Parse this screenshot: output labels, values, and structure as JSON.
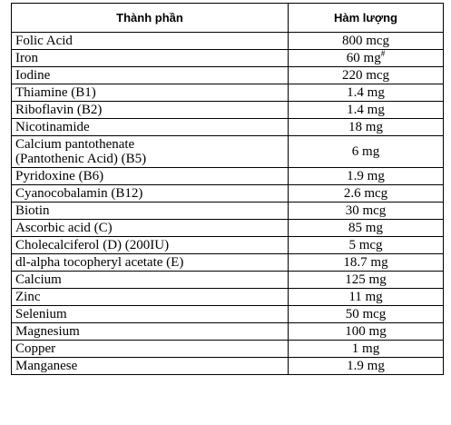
{
  "header": {
    "col_component": "Thành phần",
    "col_amount": "Hàm lượng"
  },
  "rows": [
    {
      "name": "Folic Acid",
      "amount": "800 mcg"
    },
    {
      "name": "Iron",
      "amount": "60 mg",
      "amount_sup": "#"
    },
    {
      "name": "Iodine",
      "amount": "220 mcg"
    },
    {
      "name": "Thiamine (B1)",
      "amount": "1.4 mg"
    },
    {
      "name": "Riboflavin (B2)",
      "amount": "1.4 mg"
    },
    {
      "name": "Nicotinamide",
      "amount": "18 mg"
    },
    {
      "name_line1": "Calcium pantothenate",
      "name_line2": "(Pantothenic Acid) (B5)",
      "amount": "6 mg"
    },
    {
      "name": "Pyridoxine (B6)",
      "amount": "1.9 mg"
    },
    {
      "name": "Cyanocobalamin (B12)",
      "amount": "2.6 mcg"
    },
    {
      "name": "Biotin",
      "amount": "30 mcg"
    },
    {
      "name": "Ascorbic acid (C)",
      "amount": "85 mg"
    },
    {
      "name": "Cholecalciferol (D) (200IU)",
      "amount": "5 mcg"
    },
    {
      "name": "dl-alpha tocopheryl acetate (E)",
      "amount": "18.7 mg"
    },
    {
      "name": "Calcium",
      "amount": "125 mg"
    },
    {
      "name": "Zinc",
      "amount": "11 mg"
    },
    {
      "name": "Selenium",
      "amount": "50 mcg"
    },
    {
      "name": "Magnesium",
      "amount": "100 mg"
    },
    {
      "name": "Copper",
      "amount": "1 mg"
    },
    {
      "name": "Manganese",
      "amount": "1.9 mg"
    }
  ]
}
